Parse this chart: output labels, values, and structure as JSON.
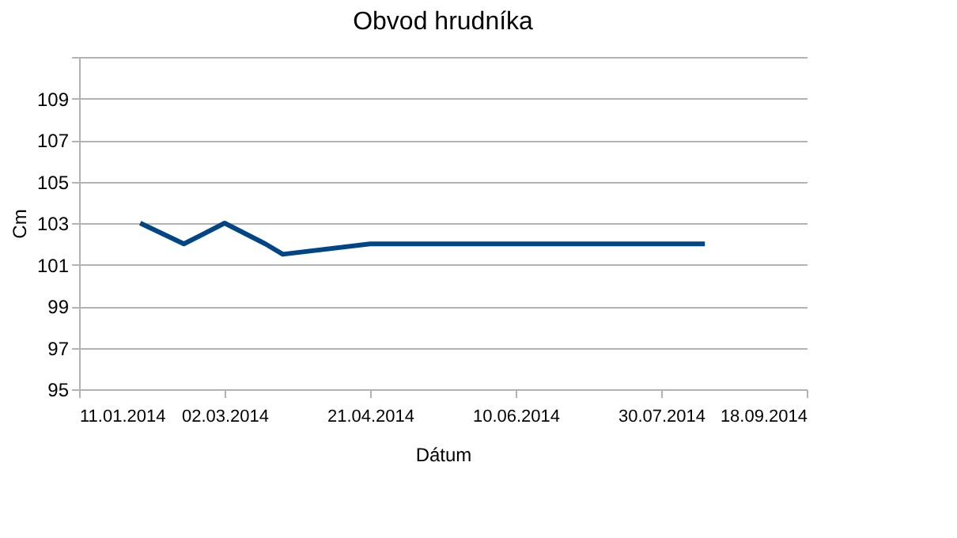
{
  "chart_data": {
    "type": "line",
    "title": "Obvod hrudníka",
    "xlabel": "Dátum",
    "ylabel": "Cm",
    "x": [
      "2014-02-01",
      "2014-02-16",
      "2014-03-02",
      "2014-03-16",
      "2014-03-22",
      "2014-04-21",
      "2014-08-14"
    ],
    "series": [
      {
        "color": "#004586",
        "values": [
          103,
          102,
          103,
          102,
          101.5,
          102,
          102
        ]
      }
    ],
    "xlim": [
      "2014-01-11",
      "2014-09-18"
    ],
    "xticks": [
      {
        "value": "2014-01-11",
        "label": "11.01.2014"
      },
      {
        "value": "2014-03-02",
        "label": "02.03.2014"
      },
      {
        "value": "2014-04-21",
        "label": "21.04.2014"
      },
      {
        "value": "2014-06-10",
        "label": "10.06.2014"
      },
      {
        "value": "2014-07-30",
        "label": "30.07.2014"
      },
      {
        "value": "2014-09-18",
        "label": "18.09.2014"
      }
    ],
    "ylim": [
      95,
      111
    ],
    "yticks": [
      95,
      97,
      99,
      101,
      103,
      105,
      107,
      109,
      {
        "value": 111,
        "label": null
      }
    ],
    "grid": "y",
    "legend": false,
    "marker": "none",
    "line_style": "solid"
  }
}
